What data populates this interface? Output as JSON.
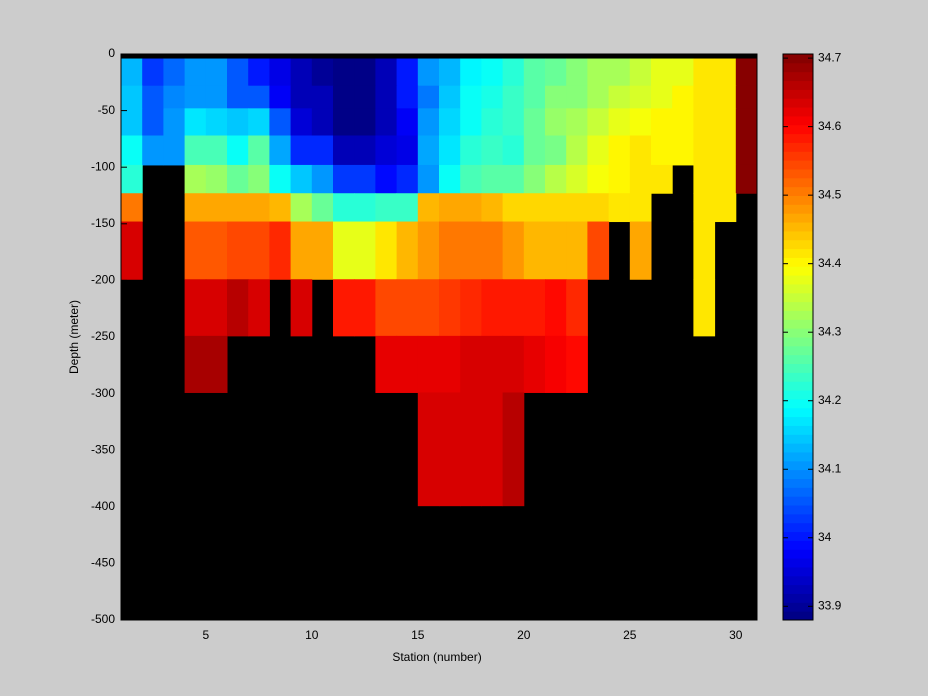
{
  "chart_data": {
    "type": "heatmap",
    "x_label": "Station (number)",
    "y_label": "Depth (meter)",
    "xlim": [
      1,
      31
    ],
    "xticks": [
      5,
      10,
      15,
      20,
      25,
      30
    ],
    "ylim": [
      -500,
      0
    ],
    "yticks": [
      0,
      -50,
      -100,
      -150,
      -200,
      -250,
      -300,
      -350,
      -400,
      -450,
      -500
    ],
    "colormap": "jet",
    "background": "#000000",
    "clim": [
      33.88,
      34.706
    ],
    "colorbar_ticks": [
      33.9,
      34,
      34.1,
      34.2,
      34.3,
      34.4,
      34.5,
      34.6,
      34.7
    ],
    "x_edges": [
      1,
      2,
      3,
      4,
      5,
      6,
      7,
      8,
      9,
      10,
      11,
      12,
      13,
      14,
      15,
      16,
      17,
      18,
      19,
      20,
      21,
      22,
      23,
      24,
      25,
      26,
      27,
      28,
      29,
      30,
      31
    ],
    "y_edges": [
      -4,
      -28,
      -48,
      -72,
      -98,
      -123,
      -148,
      -199,
      -249,
      -299,
      -399
    ],
    "values": [
      [
        34.13,
        34.03,
        34.07,
        34.1,
        34.1,
        34.05,
        34.0,
        33.97,
        33.92,
        33.9,
        33.89,
        33.89,
        33.92,
        34.0,
        34.1,
        34.13,
        34.18,
        34.2,
        34.22,
        34.26,
        34.28,
        34.3,
        34.32,
        34.33,
        34.35,
        34.38,
        34.38,
        34.42,
        34.42,
        34.7
      ],
      [
        34.14,
        34.05,
        34.09,
        34.1,
        34.1,
        34.06,
        34.05,
        33.98,
        33.93,
        33.92,
        33.89,
        33.89,
        33.93,
        34.0,
        34.08,
        34.14,
        34.19,
        34.21,
        34.24,
        34.26,
        34.3,
        34.3,
        34.33,
        34.35,
        34.37,
        34.38,
        34.4,
        34.42,
        34.42,
        34.7
      ],
      [
        34.15,
        34.06,
        34.1,
        34.17,
        34.16,
        34.15,
        34.16,
        34.05,
        33.95,
        33.93,
        33.89,
        33.89,
        33.93,
        33.98,
        34.1,
        34.16,
        34.2,
        34.22,
        34.24,
        34.27,
        34.31,
        34.32,
        34.35,
        34.38,
        34.39,
        34.4,
        34.4,
        34.42,
        34.42,
        34.7
      ],
      [
        34.2,
        34.1,
        34.1,
        34.25,
        34.25,
        34.2,
        34.26,
        34.12,
        34.02,
        34.02,
        33.92,
        33.92,
        33.95,
        33.97,
        34.12,
        34.17,
        34.22,
        34.23,
        34.22,
        34.27,
        34.29,
        34.34,
        34.38,
        34.4,
        34.41,
        34.4,
        34.4,
        34.42,
        34.42,
        34.7
      ],
      [
        34.22,
        null,
        null,
        34.32,
        34.31,
        34.27,
        34.3,
        34.2,
        34.15,
        34.1,
        34.03,
        34.03,
        33.99,
        34.02,
        34.1,
        34.2,
        34.25,
        34.26,
        34.26,
        34.3,
        34.34,
        34.37,
        34.39,
        34.4,
        34.42,
        34.41,
        null,
        34.42,
        34.42,
        34.7
      ],
      [
        34.5,
        null,
        null,
        34.47,
        34.47,
        34.47,
        34.47,
        34.46,
        34.32,
        34.27,
        34.22,
        34.22,
        34.24,
        34.24,
        34.45,
        34.47,
        34.47,
        34.45,
        34.43,
        34.43,
        34.43,
        34.43,
        34.43,
        34.42,
        34.41,
        null,
        null,
        34.42,
        34.42,
        null
      ],
      [
        34.63,
        null,
        null,
        34.53,
        34.53,
        34.55,
        34.55,
        34.57,
        34.47,
        34.47,
        34.38,
        34.38,
        34.42,
        34.45,
        34.48,
        34.5,
        34.5,
        34.5,
        34.48,
        34.46,
        34.46,
        34.46,
        34.55,
        null,
        34.47,
        null,
        null,
        34.42,
        null,
        null
      ],
      [
        null,
        null,
        null,
        34.64,
        34.64,
        34.66,
        34.64,
        null,
        34.63,
        null,
        34.58,
        34.58,
        34.55,
        34.55,
        34.55,
        34.56,
        34.57,
        34.58,
        34.58,
        34.58,
        34.6,
        34.57,
        null,
        null,
        null,
        null,
        null,
        34.42,
        null,
        null
      ],
      [
        null,
        null,
        null,
        34.67,
        34.67,
        null,
        null,
        null,
        null,
        null,
        null,
        null,
        34.62,
        34.62,
        34.62,
        34.62,
        34.64,
        34.64,
        34.63,
        34.62,
        34.61,
        34.59,
        null,
        null,
        null,
        null,
        null,
        null,
        null,
        null
      ],
      [
        null,
        null,
        null,
        null,
        null,
        null,
        null,
        null,
        null,
        null,
        null,
        null,
        null,
        null,
        34.64,
        34.63,
        34.63,
        34.64,
        34.66,
        null,
        null,
        null,
        null,
        null,
        null,
        null,
        null,
        null,
        null,
        null
      ]
    ]
  }
}
